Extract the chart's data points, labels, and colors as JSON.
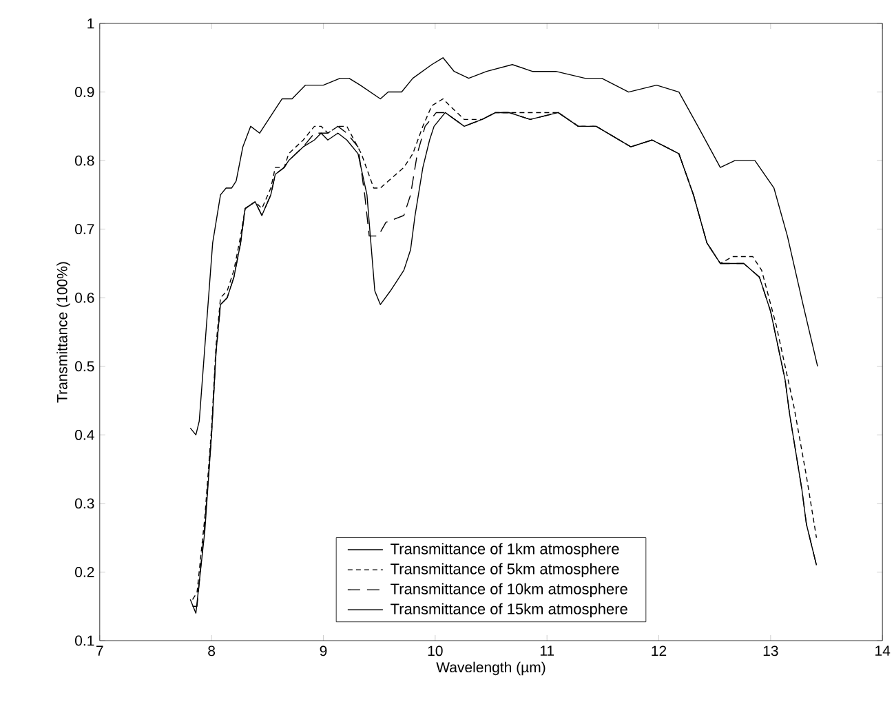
{
  "chart_data": {
    "type": "line",
    "xlabel": "Wavelength (µm)",
    "ylabel": "Transmittance (100%)",
    "xlim": [
      7,
      14
    ],
    "ylim": [
      0.1,
      1
    ],
    "xticks": [
      7,
      8,
      9,
      10,
      11,
      12,
      13,
      14
    ],
    "yticks": [
      0.1,
      0.2,
      0.3,
      0.4,
      0.5,
      0.6,
      0.7,
      0.8,
      0.9,
      1
    ],
    "grid": false,
    "legend": "bottom",
    "marker": "none",
    "series": [
      {
        "name": "Transmittance of 1km atmosphere",
        "color": "#000000",
        "line_style": "solid",
        "x": [
          7.81,
          7.86,
          7.89,
          8.01,
          8.08,
          8.13,
          8.18,
          8.22,
          8.28,
          8.35,
          8.43,
          8.51,
          8.63,
          8.72,
          8.78,
          8.84,
          8.94,
          9.0,
          9.15,
          9.23,
          9.33,
          9.51,
          9.58,
          9.7,
          9.8,
          9.97,
          10.07,
          10.17,
          10.3,
          10.46,
          10.69,
          10.87,
          11.08,
          11.34,
          11.49,
          11.73,
          11.98,
          12.18,
          12.35,
          12.55,
          12.68,
          12.86,
          13.03,
          13.15,
          13.29,
          13.42
        ],
        "values": [
          0.41,
          0.4,
          0.42,
          0.68,
          0.75,
          0.76,
          0.76,
          0.77,
          0.82,
          0.85,
          0.84,
          0.86,
          0.89,
          0.89,
          0.9,
          0.91,
          0.91,
          0.91,
          0.92,
          0.92,
          0.91,
          0.89,
          0.9,
          0.9,
          0.92,
          0.94,
          0.95,
          0.93,
          0.92,
          0.93,
          0.94,
          0.93,
          0.93,
          0.92,
          0.92,
          0.9,
          0.91,
          0.9,
          0.85,
          0.79,
          0.8,
          0.8,
          0.76,
          0.69,
          0.59,
          0.5
        ]
      },
      {
        "name": "Transmittance of 5km atmosphere",
        "color": "#000000",
        "line_style": "dashed",
        "x": [
          7.83,
          7.87,
          7.94,
          8.0,
          8.04,
          8.08,
          8.14,
          8.2,
          8.26,
          8.3,
          8.39,
          8.45,
          8.53,
          8.57,
          8.65,
          8.69,
          8.82,
          8.92,
          8.98,
          9.04,
          9.13,
          9.21,
          9.34,
          9.45,
          9.51,
          9.72,
          9.8,
          9.89,
          9.97,
          10.07,
          10.13,
          10.26,
          10.42,
          10.54,
          10.66,
          10.85,
          11.1,
          11.28,
          11.44,
          11.75,
          11.94,
          12.18,
          12.31,
          12.43,
          12.55,
          12.66,
          12.84,
          12.92,
          13.05,
          13.17,
          13.21,
          13.32,
          13.41
        ],
        "values": [
          0.16,
          0.17,
          0.28,
          0.41,
          0.53,
          0.6,
          0.61,
          0.64,
          0.69,
          0.73,
          0.74,
          0.73,
          0.76,
          0.79,
          0.79,
          0.81,
          0.83,
          0.85,
          0.85,
          0.84,
          0.85,
          0.85,
          0.81,
          0.76,
          0.76,
          0.79,
          0.81,
          0.85,
          0.88,
          0.89,
          0.88,
          0.86,
          0.86,
          0.87,
          0.87,
          0.87,
          0.87,
          0.85,
          0.85,
          0.82,
          0.83,
          0.81,
          0.75,
          0.68,
          0.65,
          0.66,
          0.66,
          0.64,
          0.56,
          0.47,
          0.44,
          0.34,
          0.25
        ]
      },
      {
        "name": "Transmittance of 10km atmosphere",
        "color": "#000000",
        "line_style": "dashed",
        "x": [
          7.83,
          7.87,
          7.94,
          8.0,
          8.04,
          8.08,
          8.14,
          8.2,
          8.26,
          8.3,
          8.39,
          8.45,
          8.53,
          8.57,
          8.65,
          8.69,
          8.82,
          8.92,
          8.98,
          9.04,
          9.13,
          9.21,
          9.31,
          9.37,
          9.41,
          9.49,
          9.56,
          9.72,
          9.78,
          9.84,
          9.91,
          10.01,
          10.09,
          10.26,
          10.42,
          10.54,
          10.66,
          10.85,
          11.1,
          11.28,
          11.44,
          11.75,
          11.94,
          12.18,
          12.31,
          12.43,
          12.55,
          12.76,
          12.9,
          13.0,
          13.13,
          13.17,
          13.28,
          13.32,
          13.41
        ],
        "values": [
          0.15,
          0.15,
          0.27,
          0.4,
          0.52,
          0.59,
          0.6,
          0.63,
          0.68,
          0.73,
          0.74,
          0.72,
          0.75,
          0.78,
          0.79,
          0.8,
          0.82,
          0.84,
          0.84,
          0.84,
          0.85,
          0.84,
          0.82,
          0.75,
          0.69,
          0.69,
          0.71,
          0.72,
          0.75,
          0.81,
          0.85,
          0.87,
          0.87,
          0.85,
          0.86,
          0.87,
          0.87,
          0.86,
          0.87,
          0.85,
          0.85,
          0.82,
          0.83,
          0.81,
          0.75,
          0.68,
          0.65,
          0.65,
          0.63,
          0.58,
          0.48,
          0.43,
          0.32,
          0.27,
          0.21
        ]
      },
      {
        "name": "Transmittance of 15km atmosphere",
        "color": "#000000",
        "line_style": "solid",
        "x": [
          7.81,
          7.86,
          7.94,
          8.0,
          8.04,
          8.08,
          8.14,
          8.2,
          8.26,
          8.3,
          8.39,
          8.45,
          8.53,
          8.57,
          8.65,
          8.69,
          8.82,
          8.92,
          8.98,
          9.04,
          9.13,
          9.21,
          9.31,
          9.39,
          9.43,
          9.46,
          9.51,
          9.6,
          9.72,
          9.78,
          9.82,
          9.89,
          9.95,
          9.99,
          10.09,
          10.26,
          10.42,
          10.54,
          10.66,
          10.85,
          11.1,
          11.28,
          11.44,
          11.75,
          11.94,
          12.18,
          12.31,
          12.43,
          12.55,
          12.76,
          12.9,
          13.0,
          13.13,
          13.17,
          13.28,
          13.32,
          13.41
        ],
        "values": [
          0.16,
          0.14,
          0.26,
          0.4,
          0.52,
          0.59,
          0.6,
          0.63,
          0.68,
          0.73,
          0.74,
          0.72,
          0.75,
          0.78,
          0.79,
          0.8,
          0.82,
          0.83,
          0.84,
          0.83,
          0.84,
          0.83,
          0.81,
          0.75,
          0.67,
          0.61,
          0.59,
          0.61,
          0.64,
          0.67,
          0.72,
          0.79,
          0.83,
          0.85,
          0.87,
          0.85,
          0.86,
          0.87,
          0.87,
          0.86,
          0.87,
          0.85,
          0.85,
          0.82,
          0.83,
          0.81,
          0.75,
          0.68,
          0.65,
          0.65,
          0.63,
          0.58,
          0.48,
          0.43,
          0.32,
          0.27,
          0.21
        ]
      }
    ]
  }
}
